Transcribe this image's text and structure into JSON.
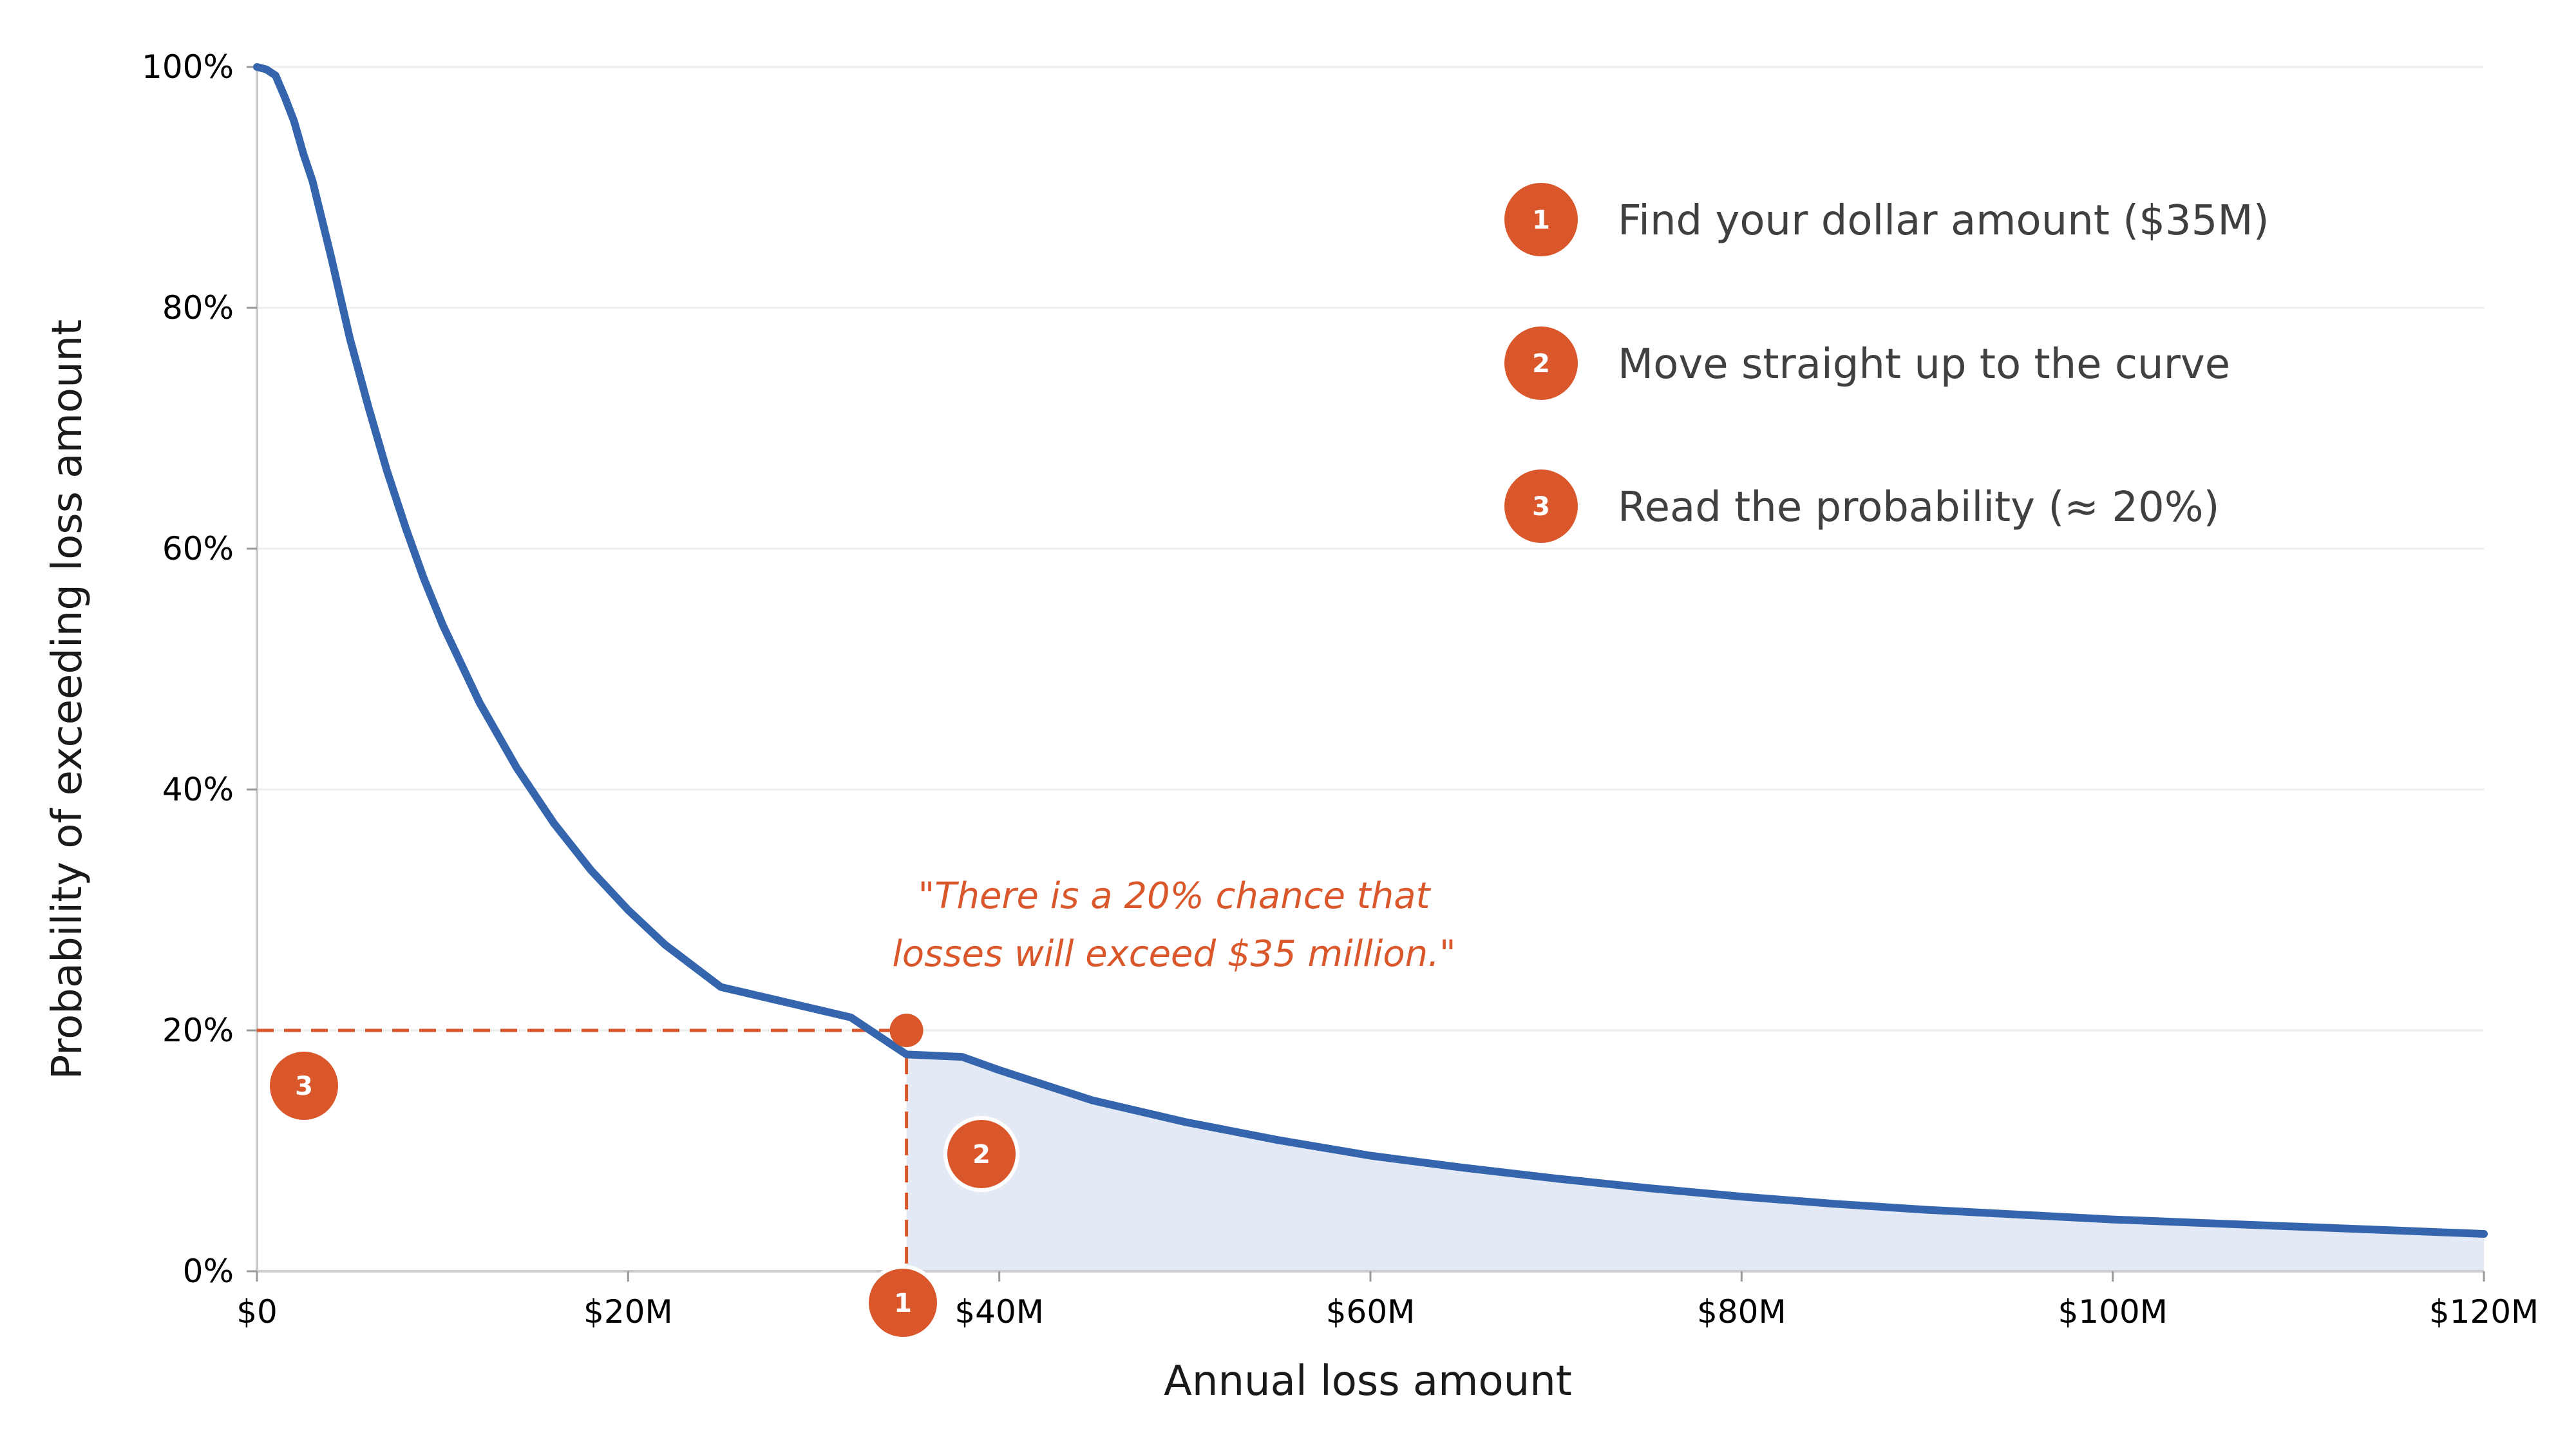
{
  "chart_data": {
    "type": "line",
    "xlabel": "Annual loss amount",
    "ylabel": "Probability of exceeding loss amount",
    "xlim": [
      0,
      120
    ],
    "ylim": [
      0,
      100
    ],
    "x_unit": "$M",
    "y_unit": "%",
    "x_ticks": [
      0,
      20,
      40,
      60,
      80,
      100,
      120
    ],
    "x_tick_labels": [
      "$0",
      "$20M",
      "$40M",
      "$60M",
      "$80M",
      "$100M",
      "$120M"
    ],
    "y_ticks": [
      0,
      20,
      40,
      60,
      80,
      100
    ],
    "y_tick_labels": [
      "0%",
      "20%",
      "40%",
      "60%",
      "80%",
      "100%"
    ],
    "grid": "horizontal",
    "series": [
      {
        "color": "#3565ad",
        "x": [
          0,
          0.5,
          1,
          1.5,
          2,
          2.5,
          3,
          4,
          5,
          6,
          7,
          8,
          9,
          10,
          12,
          14,
          16,
          18,
          20,
          22,
          25,
          28,
          30,
          32,
          35,
          38,
          40,
          45,
          50,
          55,
          60,
          65,
          70,
          75,
          80,
          85,
          90,
          95,
          100,
          105,
          110,
          115,
          120
        ],
        "y": [
          100,
          99.8,
          99.3,
          97.5,
          95.5,
          92.8,
          90.5,
          84.2,
          77.5,
          71.8,
          66.5,
          61.8,
          57.5,
          53.7,
          47.2,
          41.8,
          37.2,
          33.3,
          30.0,
          27.1,
          23.6,
          20.8,
          19.3,
          18.0,
          20.0,
          17.8,
          16.7,
          14.2,
          12.4,
          10.9,
          9.6,
          8.6,
          7.7,
          6.9,
          6.2,
          5.6,
          5.1,
          4.7,
          4.3,
          4.0,
          3.7,
          3.4,
          3.1
        ]
      }
    ],
    "shaded_region": {
      "from_x": 35,
      "to_x": 120,
      "color": "#e4eaf5"
    },
    "highlight": {
      "x": 35,
      "y": 20,
      "color": "#d9572b"
    },
    "annotation": {
      "lines": [
        "\"There is a 20% chance that",
        "losses will exceed $35 million.\""
      ],
      "color": "#d9572b"
    },
    "markers": [
      {
        "label": "1",
        "at": "x-axis"
      },
      {
        "label": "2",
        "at": "curve"
      },
      {
        "label": "3",
        "at": "y-axis"
      }
    ]
  },
  "steps": [
    {
      "number": "1",
      "text": "Find your dollar amount ($35M)"
    },
    {
      "number": "2",
      "text": "Move straight up to the curve"
    },
    {
      "number": "3",
      "text": "Read the probability (≈ 20%)"
    }
  ],
  "colors": {
    "accent": "#d9572b",
    "line": "#3565ad",
    "fill": "#e4eaf5",
    "grid": "#eeeeee",
    "axis": "#cccccc"
  }
}
